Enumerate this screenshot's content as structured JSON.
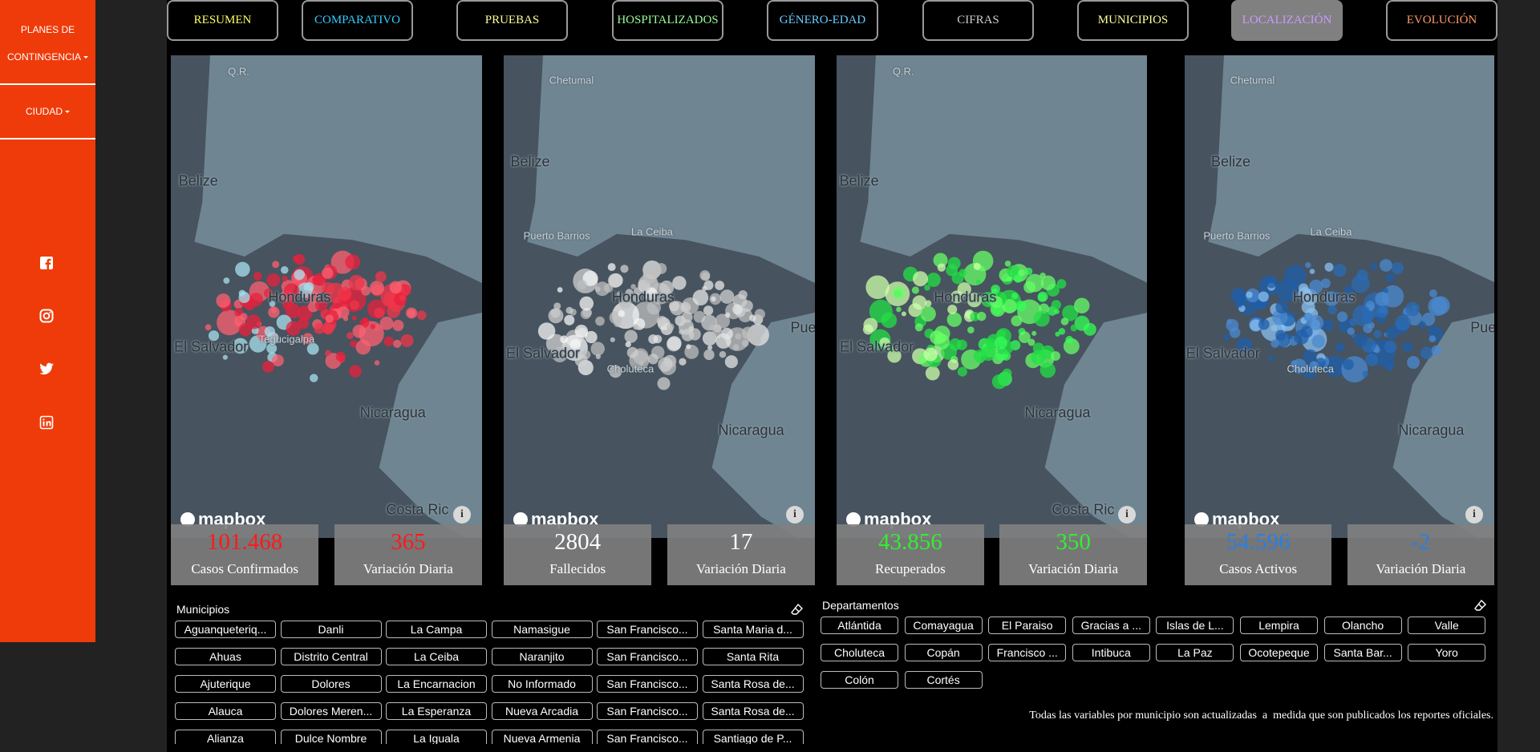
{
  "sidebar": {
    "menu": [
      "PLANES DE CONTINGENCIA",
      "CIUDAD"
    ]
  },
  "nav": [
    "RESUMEN",
    "COMPARATIVO",
    "PRUEBAS",
    "HOSPITALIZADOS",
    "GÉNERO-EDAD",
    "CIFRAS",
    "MUNICIPIOS",
    "LOCALIZACIÓN",
    "EVOLUCIÓN"
  ],
  "maps": [
    {
      "labels": [
        "Q.R.",
        "Belize",
        "Honduras",
        "El Salvador",
        "Tegucigalpa",
        "Nicaragua",
        "Costa Ric"
      ],
      "attribution": "mapbox",
      "stats": [
        {
          "value": "101.468",
          "label": "Casos Confirmados"
        },
        {
          "value": "365",
          "label": "Variación Diaria"
        }
      ]
    },
    {
      "labels": [
        "Chetumal",
        "Belize",
        "Puerto Barrios",
        "La Ceiba",
        "Honduras",
        "El Salvador",
        "Choluteca",
        "Nicaragua",
        "Pue"
      ],
      "attribution": "mapbox",
      "stats": [
        {
          "value": "2804",
          "label": "Fallecidos"
        },
        {
          "value": "17",
          "label": "Variación Diaria"
        }
      ]
    },
    {
      "labels": [
        "Q.R.",
        "Belize",
        "Honduras",
        "El Salvador",
        "Nicaragua",
        "Costa Ric"
      ],
      "attribution": "mapbox",
      "stats": [
        {
          "value": "43.856",
          "label": "Recuperados"
        },
        {
          "value": "350",
          "label": "Variación Diaria"
        }
      ]
    },
    {
      "labels": [
        "Chetumal",
        "Belize",
        "Puerto Barrios",
        "La Ceiba",
        "Honduras",
        "El Salvador",
        "Choluteca",
        "Nicaragua",
        "Pue"
      ],
      "attribution": "mapbox",
      "stats": [
        {
          "value": "54.596",
          "label": "Casos Activos"
        },
        {
          "value": "-2",
          "label": "Variación Diaria"
        }
      ]
    }
  ],
  "municipios": {
    "title": "Municipios",
    "items": [
      "Aguanqueteriq...",
      "Danli",
      "La Campa",
      "Namasigue",
      "San Francisco...",
      "Santa Maria d...",
      "Ahuas",
      "Distrito Central",
      "La Ceiba",
      "Naranjito",
      "San Francisco...",
      "Santa Rita",
      "Ajuterique",
      "Dolores",
      "La Encarnacion",
      "No Informado",
      "San Francisco...",
      "Santa Rosa de...",
      "Alauca",
      "Dolores Meren...",
      "La Esperanza",
      "Nueva Arcadia",
      "San Francisco...",
      "Santa Rosa de...",
      "Alianza",
      "Dulce Nombre",
      "La Iguala",
      "Nueva Armenia",
      "San Francisco...",
      "Santiago de P..."
    ]
  },
  "departamentos": {
    "title": "Departamentos",
    "items": [
      "Atlántida",
      "Comayagua",
      "El Paraiso",
      "Gracias a ...",
      "Islas de L...",
      "Lempira",
      "Olancho",
      "Valle",
      "Choluteca",
      "Copán",
      "Francisco ...",
      "Intibuca",
      "La Paz",
      "Ocotepeque",
      "Santa Bar...",
      "Yoro",
      "Colón",
      "Cortés"
    ]
  },
  "note": "Todas las variables por municipio son actualizadas  a  medida que son publicados los reportes oficiales."
}
